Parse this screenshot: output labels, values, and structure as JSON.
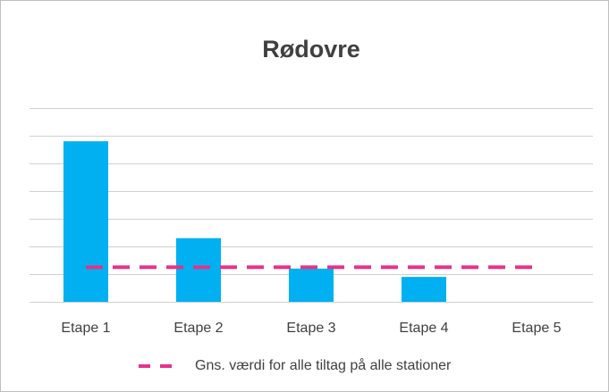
{
  "chart_data": {
    "type": "bar",
    "title": "Rødovre",
    "categories": [
      "Etape 1",
      "Etape 2",
      "Etape 3",
      "Etape 4",
      "Etape 5"
    ],
    "values": [
      5.8,
      2.3,
      1.2,
      0.9,
      0
    ],
    "color": "#00b0f0",
    "series": [
      {
        "name": "Gns. værdi for alle tiltag på alle stationer",
        "color": "#e8318a",
        "values": [
          1.25,
          1.25,
          1.25,
          1.25,
          1.25
        ]
      }
    ],
    "ylim": [
      0,
      7
    ],
    "yticks": [
      0,
      1,
      2,
      3,
      4,
      5,
      6,
      7
    ],
    "grid": true,
    "legend": "bottom"
  }
}
